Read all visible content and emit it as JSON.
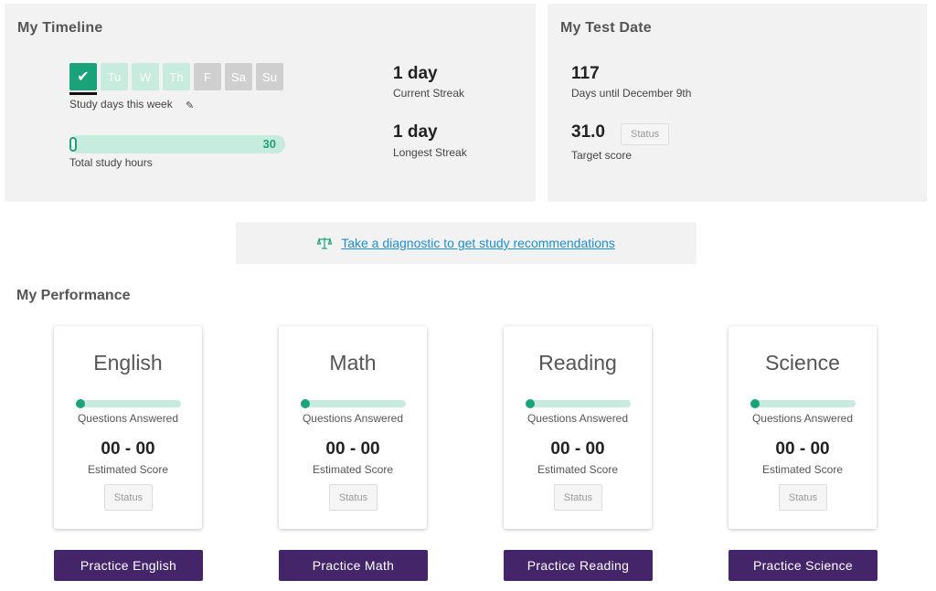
{
  "timeline": {
    "title": "My Timeline",
    "days": [
      {
        "label": "✔",
        "state": "done"
      },
      {
        "label": "Tu",
        "state": "todo"
      },
      {
        "label": "W",
        "state": "todo"
      },
      {
        "label": "Th",
        "state": "todo"
      },
      {
        "label": "F",
        "state": "weekend"
      },
      {
        "label": "Sa",
        "state": "weekend"
      },
      {
        "label": "Su",
        "state": "weekend"
      }
    ],
    "study_days_label": "Study days this week",
    "hours_max": "30",
    "hours_progress": 0,
    "total_hours_label": "Total study hours",
    "current_streak_value": "1 day",
    "current_streak_label": "Current Streak",
    "longest_streak_value": "1 day",
    "longest_streak_label": "Longest Streak"
  },
  "test_date": {
    "title": "My Test Date",
    "days_value": "117",
    "days_label": "Days until December 9th",
    "target_value": "31.0",
    "status_label": "Status",
    "target_label": "Target score"
  },
  "diagnostic": {
    "link_text": "Take a diagnostic to get study recommendations"
  },
  "performance": {
    "title": "My Performance",
    "cards": [
      {
        "subject": "English",
        "questions_label": "Questions Answered",
        "score": "00 - 00",
        "score_label": "Estimated Score",
        "status": "Status",
        "button": "Practice English",
        "progress": 0
      },
      {
        "subject": "Math",
        "questions_label": "Questions Answered",
        "score": "00 - 00",
        "score_label": "Estimated Score",
        "status": "Status",
        "button": "Practice Math",
        "progress": 0
      },
      {
        "subject": "Reading",
        "questions_label": "Questions Answered",
        "score": "00 - 00",
        "score_label": "Estimated Score",
        "status": "Status",
        "button": "Practice Reading",
        "progress": 0
      },
      {
        "subject": "Science",
        "questions_label": "Questions Answered",
        "score": "00 - 00",
        "score_label": "Estimated Score",
        "status": "Status",
        "button": "Practice Science",
        "progress": 0
      }
    ]
  },
  "colors": {
    "accent_green": "#1aa37a",
    "light_green": "#c7ecdd",
    "button_purple": "#45256a",
    "link_blue": "#1c8fce"
  },
  "icons": {
    "pencil": "pencil-icon",
    "scale": "scale-icon",
    "check": "check-icon"
  }
}
